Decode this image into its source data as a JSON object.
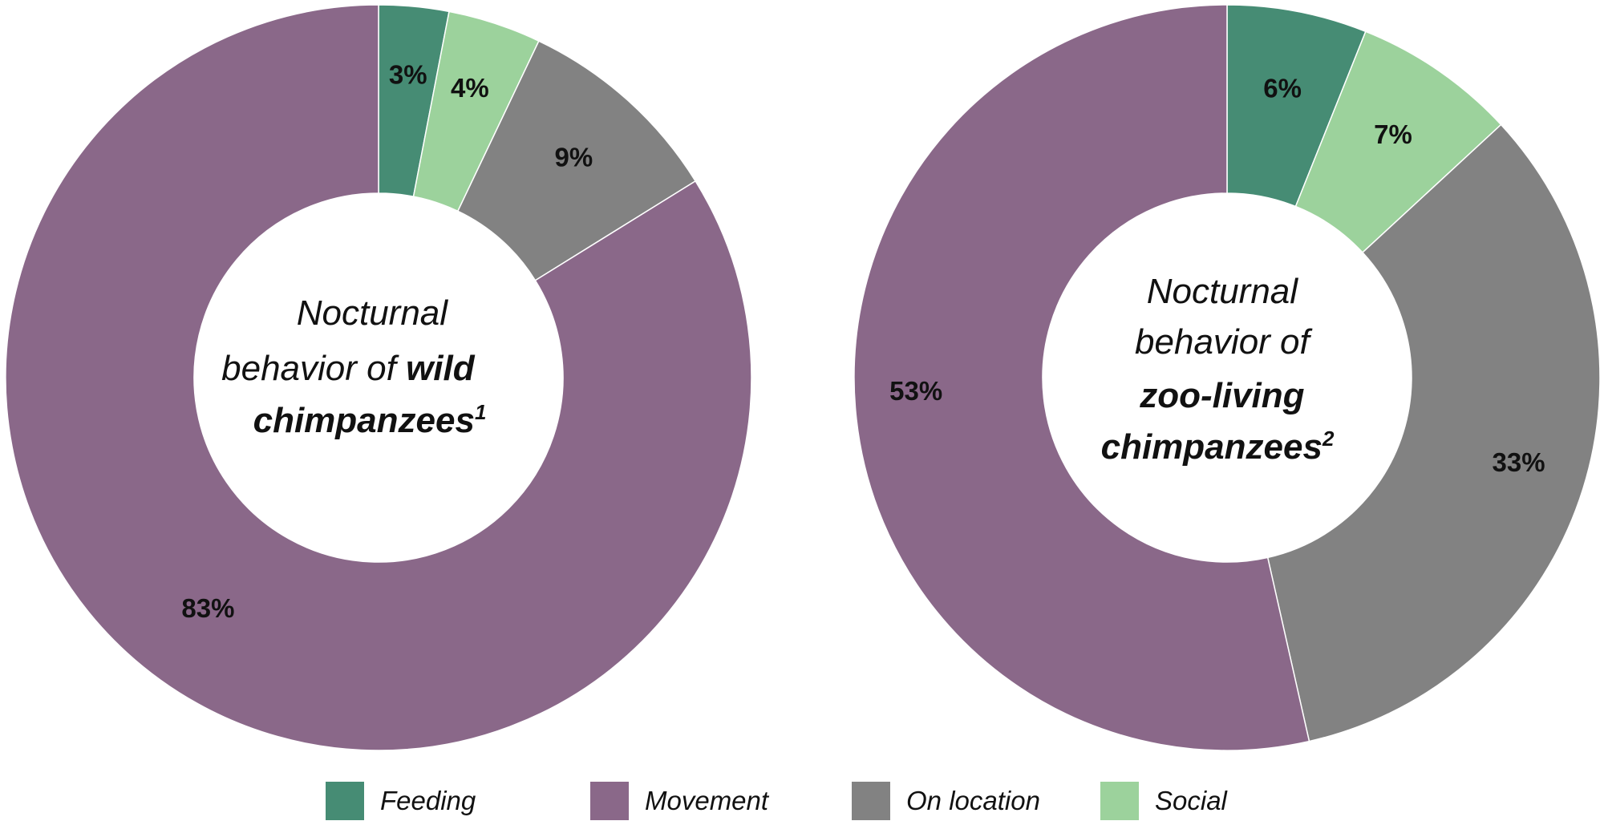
{
  "chart_data": [
    {
      "type": "pie",
      "variant": "donut",
      "center_label": {
        "line1": "Nocturnal",
        "line2_a": "behavior of ",
        "line2_b": "wild",
        "line3": "chimpanzees",
        "sup": "1"
      },
      "slices": [
        {
          "name": "Feeding",
          "value": 3,
          "label": "3%"
        },
        {
          "name": "Social",
          "value": 4,
          "label": "4%"
        },
        {
          "name": "On location",
          "value": 9,
          "label": "9%"
        },
        {
          "name": "Movement",
          "value": 83,
          "label": "83%"
        }
      ]
    },
    {
      "type": "pie",
      "variant": "donut",
      "center_label": {
        "line1": "Nocturnal",
        "line2": "behavior of",
        "line3": "zoo-living",
        "line4": "chimpanzees",
        "sup": "2"
      },
      "slices": [
        {
          "name": "Feeding",
          "value": 6,
          "label": "6%"
        },
        {
          "name": "Social",
          "value": 7,
          "label": "7%"
        },
        {
          "name": "On location",
          "value": 33,
          "label": "33%"
        },
        {
          "name": "Movement",
          "value": 53,
          "label": "53%"
        }
      ]
    }
  ],
  "legend": [
    {
      "name": "Feeding",
      "color": "#468c74"
    },
    {
      "name": "Movement",
      "color": "#8a6889"
    },
    {
      "name": "On location",
      "color": "#828282"
    },
    {
      "name": "Social",
      "color": "#9cd29c"
    }
  ],
  "colors": {
    "Feeding": "#468c74",
    "Movement": "#8a6889",
    "On location": "#828282",
    "Social": "#9cd29c"
  }
}
